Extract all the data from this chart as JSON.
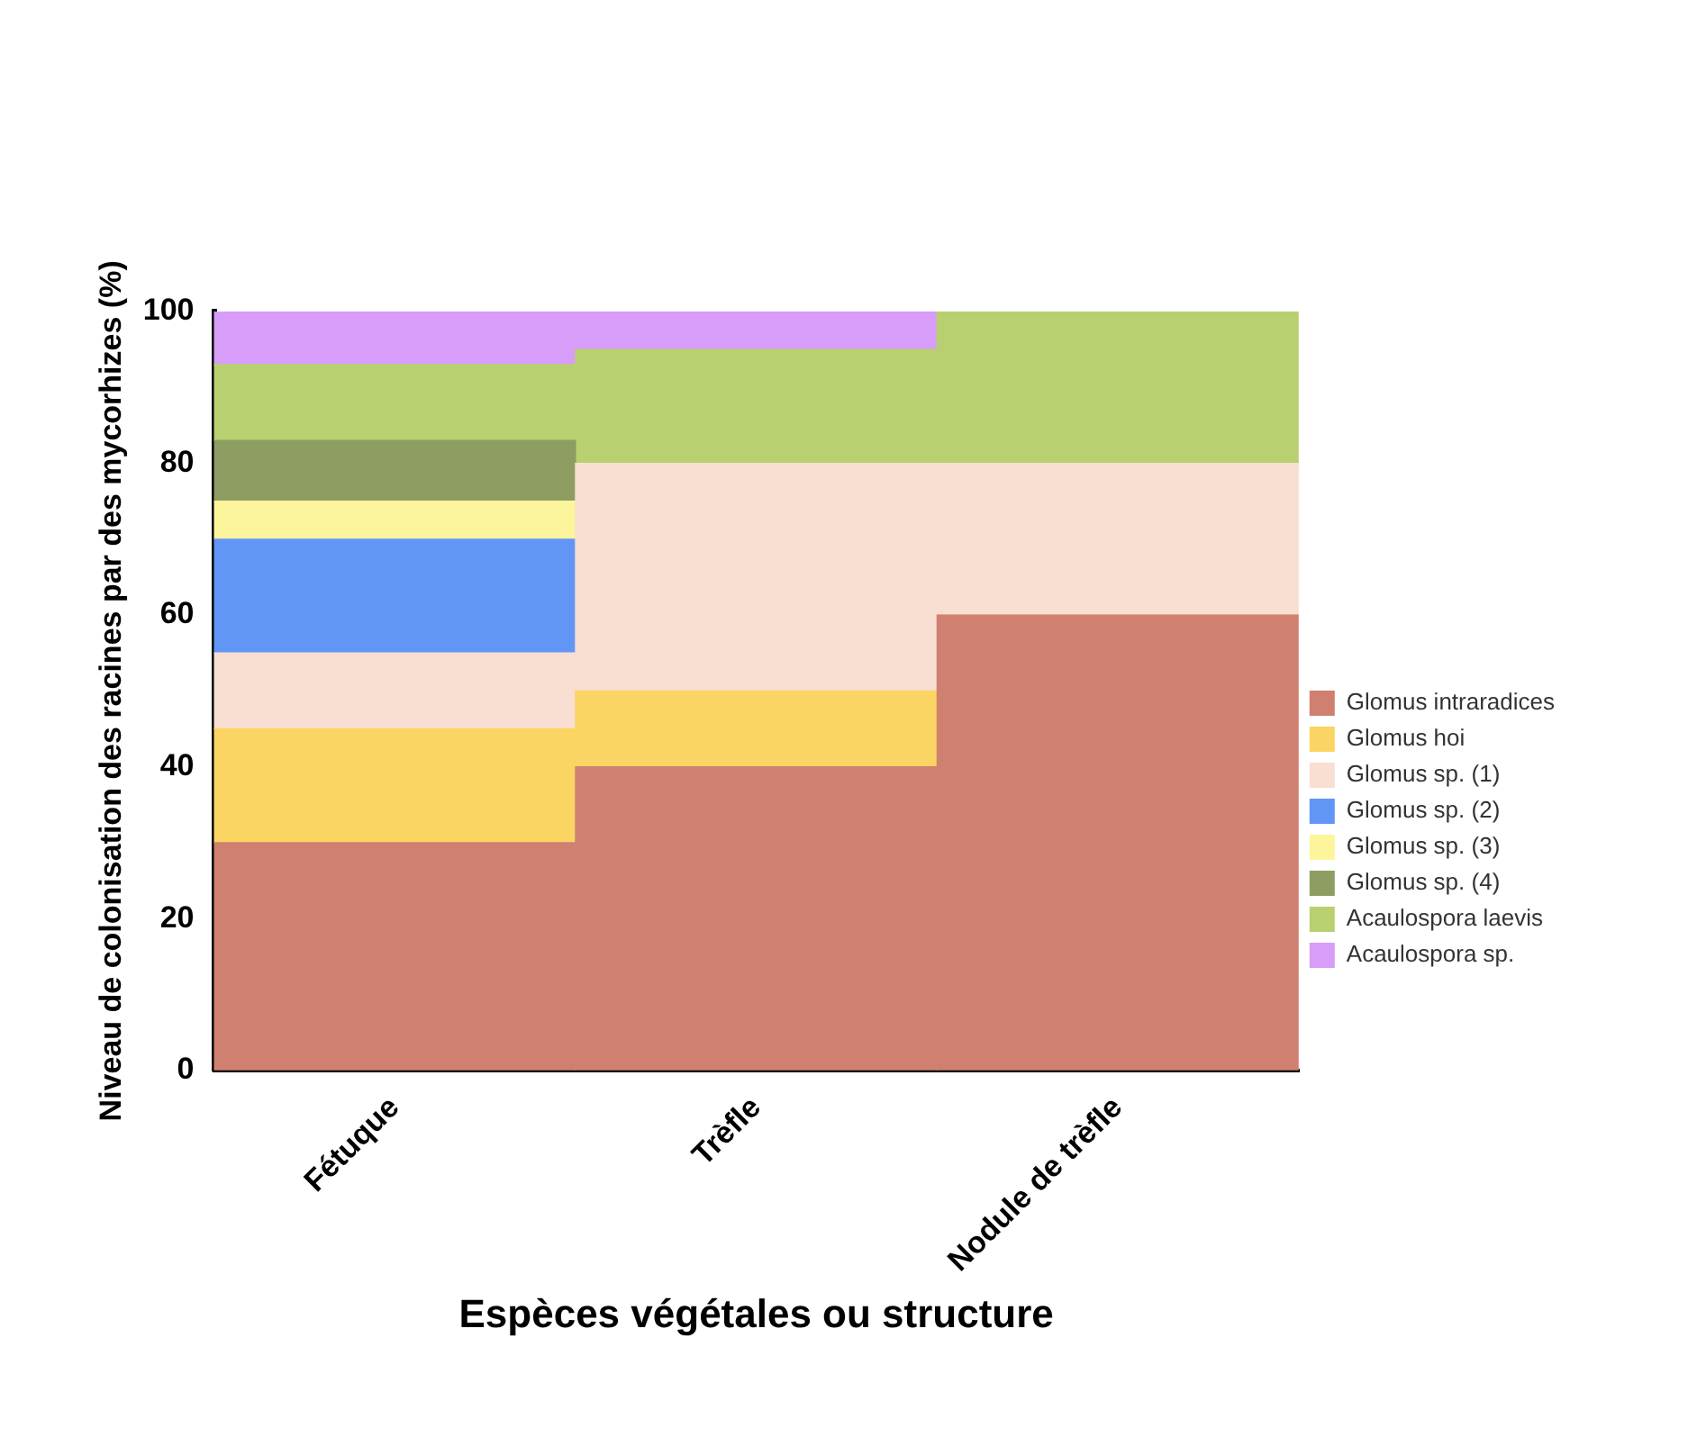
{
  "chart_data": {
    "type": "bar",
    "stacked": true,
    "xlabel": "Espèces végétales ou structure",
    "ylabel": "Niveau de colonisation des racines par des mycorhizes (%)",
    "categories": [
      "Fétuque",
      "Trèfle",
      "Nodule de trèfle"
    ],
    "ylim": [
      0,
      100
    ],
    "yticks": [
      0,
      20,
      40,
      60,
      80,
      100
    ],
    "grid": false,
    "legend": "right",
    "series": [
      {
        "name": "Glomus intraradices",
        "color": "#d08070",
        "values": [
          30,
          40,
          60
        ]
      },
      {
        "name": "Glomus hoi",
        "color": "#fad564",
        "values": [
          15,
          10,
          0
        ]
      },
      {
        "name": "Glomus sp. (1)",
        "color": "#f9ded2",
        "values": [
          10,
          30,
          20
        ]
      },
      {
        "name": "Glomus sp. (2)",
        "color": "#6196f6",
        "values": [
          15,
          0,
          0
        ]
      },
      {
        "name": "Glomus sp. (3)",
        "color": "#fcf59c",
        "values": [
          5,
          0,
          0
        ]
      },
      {
        "name": "Glomus sp. (4)",
        "color": "#8e9e62",
        "values": [
          8,
          0,
          0
        ]
      },
      {
        "name": "Acaulospora laevis",
        "color": "#b9d070",
        "values": [
          10,
          15,
          20
        ]
      },
      {
        "name": "Acaulospora sp.",
        "color": "#d89df8",
        "values": [
          7,
          5,
          0
        ]
      }
    ]
  }
}
